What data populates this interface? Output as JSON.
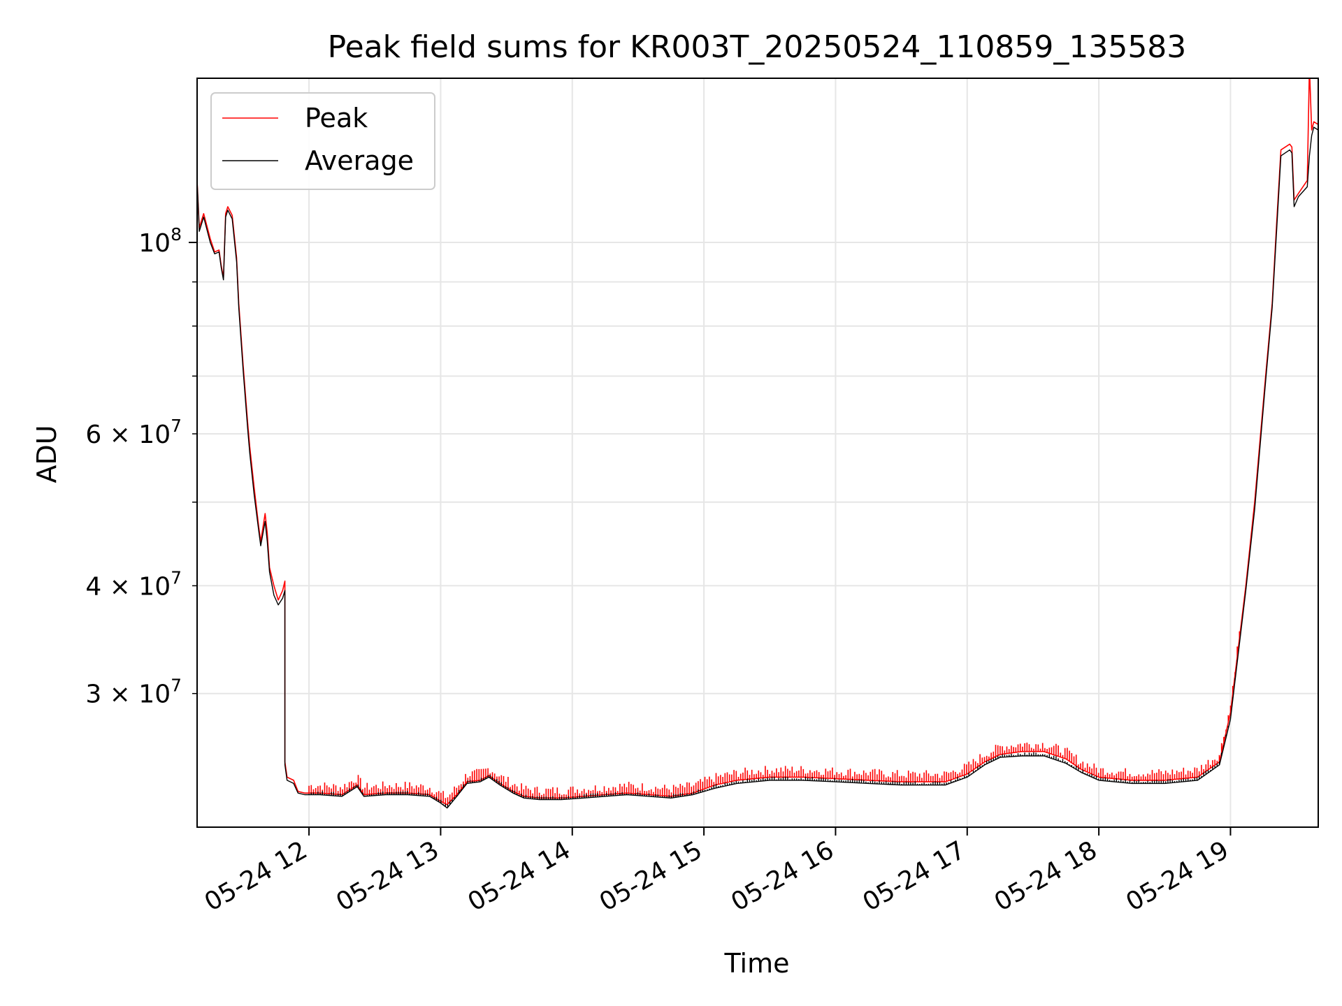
{
  "chart_data": {
    "type": "line",
    "title": "Peak field sums for KR003T_20250524_110859_135583",
    "xlabel": "Time",
    "ylabel": "ADU",
    "x_axis": {
      "type": "time",
      "range": [
        "2025-05-24 11:09",
        "2025-05-24 19:40"
      ],
      "ticks": [
        {
          "at": "2025-05-24 12:00",
          "label": "05-24 12"
        },
        {
          "at": "2025-05-24 13:00",
          "label": "05-24 13"
        },
        {
          "at": "2025-05-24 14:00",
          "label": "05-24 14"
        },
        {
          "at": "2025-05-24 15:00",
          "label": "05-24 15"
        },
        {
          "at": "2025-05-24 16:00",
          "label": "05-24 16"
        },
        {
          "at": "2025-05-24 17:00",
          "label": "05-24 17"
        },
        {
          "at": "2025-05-24 18:00",
          "label": "05-24 18"
        },
        {
          "at": "2025-05-24 19:00",
          "label": "05-24 19"
        }
      ]
    },
    "y_axis": {
      "scale": "log",
      "range": [
        21000000,
        155000000
      ],
      "major_ticks": [
        {
          "value": 100000000,
          "base": "10",
          "exp": "8"
        }
      ],
      "minor_ticks": [
        {
          "value": 30000000,
          "mant": "3",
          "exp": "7"
        },
        {
          "value": 40000000,
          "mant": "4",
          "exp": "7"
        },
        {
          "value": 60000000,
          "mant": "6",
          "exp": "7"
        }
      ],
      "unlabeled_minor_ticks": [
        50000000,
        70000000,
        80000000,
        90000000
      ]
    },
    "grid": true,
    "legend_position": "top-left",
    "series": [
      {
        "name": "Peak",
        "color": "#ff0000",
        "spike_pct": 2.5,
        "points": [
          [
            "2025-05-24 11:09",
            160000000
          ],
          [
            "2025-05-24 11:09",
            118000000
          ],
          [
            "2025-05-24 11:10",
            104000000
          ],
          [
            "2025-05-24 11:12",
            108000000
          ],
          [
            "2025-05-24 11:15",
            101000000
          ],
          [
            "2025-05-24 11:17",
            97500000
          ],
          [
            "2025-05-24 11:19",
            98000000
          ],
          [
            "2025-05-24 11:20",
            94000000
          ],
          [
            "2025-05-24 11:21",
            91000000
          ],
          [
            "2025-05-24 11:22",
            108000000
          ],
          [
            "2025-05-24 11:23",
            110000000
          ],
          [
            "2025-05-24 11:25",
            107500000
          ],
          [
            "2025-05-24 11:27",
            96000000
          ],
          [
            "2025-05-24 11:28",
            85000000
          ],
          [
            "2025-05-24 11:30",
            72000000
          ],
          [
            "2025-05-24 11:32",
            62000000
          ],
          [
            "2025-05-24 11:33",
            58000000
          ],
          [
            "2025-05-24 11:35",
            52000000
          ],
          [
            "2025-05-24 11:37",
            47000000
          ],
          [
            "2025-05-24 11:38",
            45000000
          ],
          [
            "2025-05-24 11:40",
            48500000
          ],
          [
            "2025-05-24 11:41",
            46000000
          ],
          [
            "2025-05-24 11:42",
            42000000
          ],
          [
            "2025-05-24 11:44",
            40000000
          ],
          [
            "2025-05-24 11:46",
            38500000
          ],
          [
            "2025-05-24 11:48",
            39500000
          ],
          [
            "2025-05-24 11:49",
            40500000
          ],
          [
            "2025-05-24 11:49",
            25000000
          ],
          [
            "2025-05-24 11:50",
            24000000
          ],
          [
            "2025-05-24 11:53",
            23800000
          ],
          [
            "2025-05-24 11:55",
            23100000
          ],
          [
            "2025-05-24 11:58",
            23000000
          ],
          [
            "2025-05-24 12:05",
            23000000
          ],
          [
            "2025-05-24 12:15",
            22900000
          ],
          [
            "2025-05-24 12:22",
            23500000
          ],
          [
            "2025-05-24 12:25",
            22900000
          ],
          [
            "2025-05-24 12:35",
            23000000
          ],
          [
            "2025-05-24 12:45",
            23000000
          ],
          [
            "2025-05-24 12:55",
            22900000
          ],
          [
            "2025-05-24 13:00",
            22500000
          ],
          [
            "2025-05-24 13:03",
            22300000
          ],
          [
            "2025-05-24 13:08",
            23000000
          ],
          [
            "2025-05-24 13:12",
            23700000
          ],
          [
            "2025-05-24 13:18",
            23800000
          ],
          [
            "2025-05-24 13:22",
            24100000
          ],
          [
            "2025-05-24 13:27",
            23600000
          ],
          [
            "2025-05-24 13:33",
            23100000
          ],
          [
            "2025-05-24 13:38",
            22800000
          ],
          [
            "2025-05-24 13:45",
            22700000
          ],
          [
            "2025-05-24 13:55",
            22700000
          ],
          [
            "2025-05-24 14:05",
            22800000
          ],
          [
            "2025-05-24 14:15",
            22900000
          ],
          [
            "2025-05-24 14:25",
            23000000
          ],
          [
            "2025-05-24 14:35",
            22900000
          ],
          [
            "2025-05-24 14:45",
            22800000
          ],
          [
            "2025-05-24 14:55",
            23000000
          ],
          [
            "2025-05-24 15:05",
            23500000
          ],
          [
            "2025-05-24 15:15",
            23800000
          ],
          [
            "2025-05-24 15:30",
            24000000
          ],
          [
            "2025-05-24 15:45",
            24000000
          ],
          [
            "2025-05-24 16:00",
            23900000
          ],
          [
            "2025-05-24 16:15",
            23800000
          ],
          [
            "2025-05-24 16:30",
            23700000
          ],
          [
            "2025-05-24 16:45",
            23700000
          ],
          [
            "2025-05-24 16:50",
            23700000
          ],
          [
            "2025-05-24 17:00",
            24200000
          ],
          [
            "2025-05-24 17:08",
            25000000
          ],
          [
            "2025-05-24 17:15",
            25500000
          ],
          [
            "2025-05-24 17:25",
            25700000
          ],
          [
            "2025-05-24 17:35",
            25700000
          ],
          [
            "2025-05-24 17:45",
            25200000
          ],
          [
            "2025-05-24 17:52",
            24500000
          ],
          [
            "2025-05-24 18:00",
            24000000
          ],
          [
            "2025-05-24 18:15",
            23800000
          ],
          [
            "2025-05-24 18:30",
            23800000
          ],
          [
            "2025-05-24 18:45",
            24000000
          ],
          [
            "2025-05-24 18:55",
            25000000
          ],
          [
            "2025-05-24 19:00",
            28500000
          ],
          [
            "2025-05-24 19:03",
            33000000
          ],
          [
            "2025-05-24 19:07",
            40000000
          ],
          [
            "2025-05-24 19:11",
            50000000
          ],
          [
            "2025-05-24 19:16",
            70000000
          ],
          [
            "2025-05-24 19:19",
            85000000
          ],
          [
            "2025-05-24 19:21",
            105000000
          ],
          [
            "2025-05-24 19:23",
            128000000
          ],
          [
            "2025-05-24 19:27",
            130000000
          ],
          [
            "2025-05-24 19:28",
            129000000
          ],
          [
            "2025-05-24 19:29",
            112000000
          ],
          [
            "2025-05-24 19:31",
            114000000
          ],
          [
            "2025-05-24 19:35",
            118000000
          ],
          [
            "2025-05-24 19:36",
            160000000
          ],
          [
            "2025-05-24 19:37",
            135000000
          ],
          [
            "2025-05-24 19:38",
            138000000
          ],
          [
            "2025-05-24 19:40",
            137000000
          ]
        ]
      },
      {
        "name": "Average",
        "color": "#000000",
        "spike_pct": 0.8,
        "points": [
          [
            "2025-05-24 11:09",
            118000000
          ],
          [
            "2025-05-24 11:10",
            103000000
          ],
          [
            "2025-05-24 11:12",
            107000000
          ],
          [
            "2025-05-24 11:15",
            100000000
          ],
          [
            "2025-05-24 11:17",
            97000000
          ],
          [
            "2025-05-24 11:19",
            97500000
          ],
          [
            "2025-05-24 11:20",
            93500000
          ],
          [
            "2025-05-24 11:21",
            90500000
          ],
          [
            "2025-05-24 11:22",
            107000000
          ],
          [
            "2025-05-24 11:23",
            109000000
          ],
          [
            "2025-05-24 11:25",
            106500000
          ],
          [
            "2025-05-24 11:27",
            95000000
          ],
          [
            "2025-05-24 11:28",
            84000000
          ],
          [
            "2025-05-24 11:30",
            71000000
          ],
          [
            "2025-05-24 11:32",
            61000000
          ],
          [
            "2025-05-24 11:33",
            57000000
          ],
          [
            "2025-05-24 11:35",
            51000000
          ],
          [
            "2025-05-24 11:37",
            46500000
          ],
          [
            "2025-05-24 11:38",
            44500000
          ],
          [
            "2025-05-24 11:40",
            47500000
          ],
          [
            "2025-05-24 11:41",
            45000000
          ],
          [
            "2025-05-24 11:42",
            41500000
          ],
          [
            "2025-05-24 11:44",
            39000000
          ],
          [
            "2025-05-24 11:46",
            38000000
          ],
          [
            "2025-05-24 11:48",
            38700000
          ],
          [
            "2025-05-24 11:49",
            39500000
          ],
          [
            "2025-05-24 11:49",
            24800000
          ],
          [
            "2025-05-24 11:50",
            23800000
          ],
          [
            "2025-05-24 11:53",
            23600000
          ],
          [
            "2025-05-24 11:55",
            23000000
          ],
          [
            "2025-05-24 11:58",
            22900000
          ],
          [
            "2025-05-24 12:05",
            22900000
          ],
          [
            "2025-05-24 12:15",
            22800000
          ],
          [
            "2025-05-24 12:22",
            23400000
          ],
          [
            "2025-05-24 12:25",
            22800000
          ],
          [
            "2025-05-24 12:35",
            22900000
          ],
          [
            "2025-05-24 12:45",
            22900000
          ],
          [
            "2025-05-24 12:55",
            22800000
          ],
          [
            "2025-05-24 13:00",
            22400000
          ],
          [
            "2025-05-24 13:03",
            22100000
          ],
          [
            "2025-05-24 13:08",
            22900000
          ],
          [
            "2025-05-24 13:12",
            23600000
          ],
          [
            "2025-05-24 13:18",
            23700000
          ],
          [
            "2025-05-24 13:22",
            24000000
          ],
          [
            "2025-05-24 13:27",
            23500000
          ],
          [
            "2025-05-24 13:33",
            23000000
          ],
          [
            "2025-05-24 13:38",
            22700000
          ],
          [
            "2025-05-24 13:45",
            22600000
          ],
          [
            "2025-05-24 13:55",
            22600000
          ],
          [
            "2025-05-24 14:05",
            22700000
          ],
          [
            "2025-05-24 14:15",
            22800000
          ],
          [
            "2025-05-24 14:25",
            22900000
          ],
          [
            "2025-05-24 14:35",
            22800000
          ],
          [
            "2025-05-24 14:45",
            22700000
          ],
          [
            "2025-05-24 14:55",
            22900000
          ],
          [
            "2025-05-24 15:05",
            23300000
          ],
          [
            "2025-05-24 15:15",
            23600000
          ],
          [
            "2025-05-24 15:30",
            23800000
          ],
          [
            "2025-05-24 15:45",
            23800000
          ],
          [
            "2025-05-24 16:00",
            23700000
          ],
          [
            "2025-05-24 16:15",
            23600000
          ],
          [
            "2025-05-24 16:30",
            23500000
          ],
          [
            "2025-05-24 16:45",
            23500000
          ],
          [
            "2025-05-24 16:50",
            23500000
          ],
          [
            "2025-05-24 17:00",
            24000000
          ],
          [
            "2025-05-24 17:08",
            24800000
          ],
          [
            "2025-05-24 17:15",
            25300000
          ],
          [
            "2025-05-24 17:25",
            25400000
          ],
          [
            "2025-05-24 17:35",
            25400000
          ],
          [
            "2025-05-24 17:45",
            24900000
          ],
          [
            "2025-05-24 17:52",
            24300000
          ],
          [
            "2025-05-24 18:00",
            23800000
          ],
          [
            "2025-05-24 18:15",
            23600000
          ],
          [
            "2025-05-24 18:30",
            23600000
          ],
          [
            "2025-05-24 18:45",
            23800000
          ],
          [
            "2025-05-24 18:55",
            24800000
          ],
          [
            "2025-05-24 19:00",
            28000000
          ],
          [
            "2025-05-24 19:03",
            32500000
          ],
          [
            "2025-05-24 19:07",
            39500000
          ],
          [
            "2025-05-24 19:11",
            49000000
          ],
          [
            "2025-05-24 19:16",
            69000000
          ],
          [
            "2025-05-24 19:19",
            84000000
          ],
          [
            "2025-05-24 19:21",
            103000000
          ],
          [
            "2025-05-24 19:23",
            126000000
          ],
          [
            "2025-05-24 19:27",
            128000000
          ],
          [
            "2025-05-24 19:28",
            127000000
          ],
          [
            "2025-05-24 19:29",
            110000000
          ],
          [
            "2025-05-24 19:31",
            113000000
          ],
          [
            "2025-05-24 19:35",
            116000000
          ],
          [
            "2025-05-24 19:36",
            126000000
          ],
          [
            "2025-05-24 19:37",
            133000000
          ],
          [
            "2025-05-24 19:38",
            136000000
          ],
          [
            "2025-05-24 19:40",
            135000000
          ]
        ]
      }
    ]
  }
}
